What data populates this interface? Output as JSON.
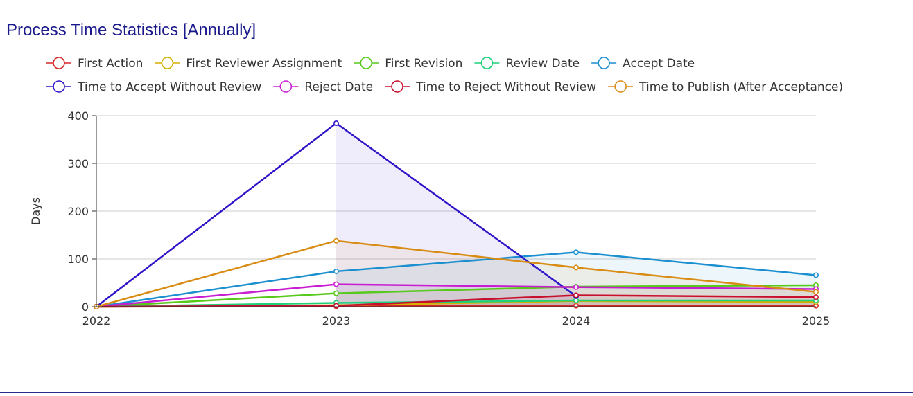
{
  "page": {
    "title": "Process Time Statistics [Annually]"
  },
  "chart_data": {
    "type": "area",
    "title": "Process Time Statistics [Annually]",
    "xlabel": "",
    "ylabel": "Days",
    "categories": [
      "2022",
      "2023",
      "2024",
      "2025"
    ],
    "ylim": [
      0,
      400
    ],
    "yticks": [
      0,
      100,
      200,
      300,
      400
    ],
    "grid": true,
    "legend_position": "top",
    "series": [
      {
        "name": "First Action",
        "color": "#d62728",
        "values": [
          0,
          1,
          2,
          2
        ]
      },
      {
        "name": "First Reviewer Assignment",
        "color": "#d4b000",
        "values": [
          0,
          3,
          12,
          10
        ]
      },
      {
        "name": "First Revision",
        "color": "#56c91a",
        "values": [
          0,
          28,
          42,
          45
        ]
      },
      {
        "name": "Review Date",
        "color": "#1fcf7a",
        "values": [
          0,
          8,
          13,
          13
        ]
      },
      {
        "name": "Accept Date",
        "color": "#1b8fcf",
        "values": [
          0,
          74,
          114,
          66
        ]
      },
      {
        "name": "Time to Accept Without Review",
        "color": "#2e14c8",
        "values": [
          0,
          384,
          22,
          null
        ]
      },
      {
        "name": "Reject Date",
        "color": "#c81ed2",
        "values": [
          0,
          47,
          41,
          37
        ]
      },
      {
        "name": "Time to Reject Without Review",
        "color": "#c8102e",
        "values": [
          0,
          2,
          24,
          20
        ]
      },
      {
        "name": "Time to Publish (After Acceptance)",
        "color": "#d98c14",
        "values": [
          0,
          138,
          82,
          31
        ]
      }
    ]
  }
}
